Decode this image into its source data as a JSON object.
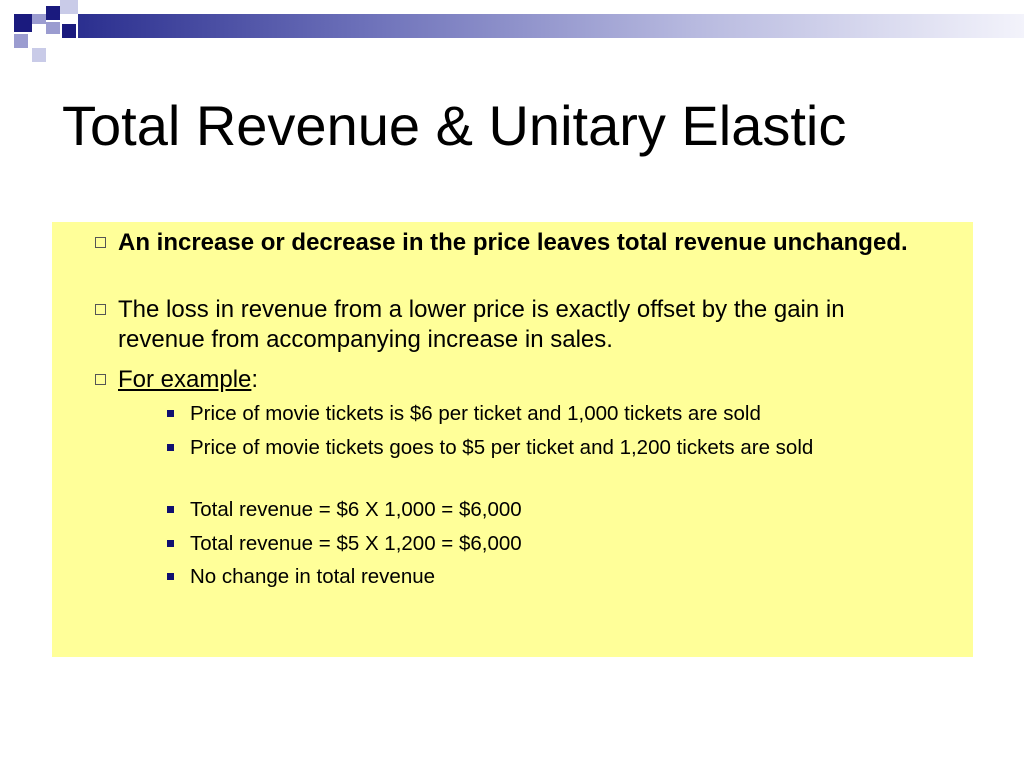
{
  "colors": {
    "accent_navy": "#1a1a7e",
    "content_background": "#ffff99"
  },
  "slide": {
    "title": "Total Revenue & Unitary Elastic",
    "bullets": [
      {
        "text": "An increase or decrease in the price leaves total revenue unchanged."
      },
      {
        "text": "The loss in revenue from a lower price is exactly offset by the gain in revenue from accompanying increase in sales."
      },
      {
        "link_text": "For example",
        "suffix": ":"
      }
    ],
    "sub_bullets": [
      {
        "text": "Price of movie tickets is $6 per ticket and 1,000 tickets are sold"
      },
      {
        "text": "Price of movie tickets goes to $5 per ticket and 1,200 tickets are sold"
      },
      {
        "text": "Total revenue = $6 X 1,000 = $6,000"
      },
      {
        "text": "Total revenue = $5 X 1,200 = $6,000"
      },
      {
        "text": "No change in total revenue"
      }
    ],
    "bullet_icons": {
      "level1": "hollow-square-bullet-icon",
      "level2": "filled-square-bullet-icon"
    }
  }
}
